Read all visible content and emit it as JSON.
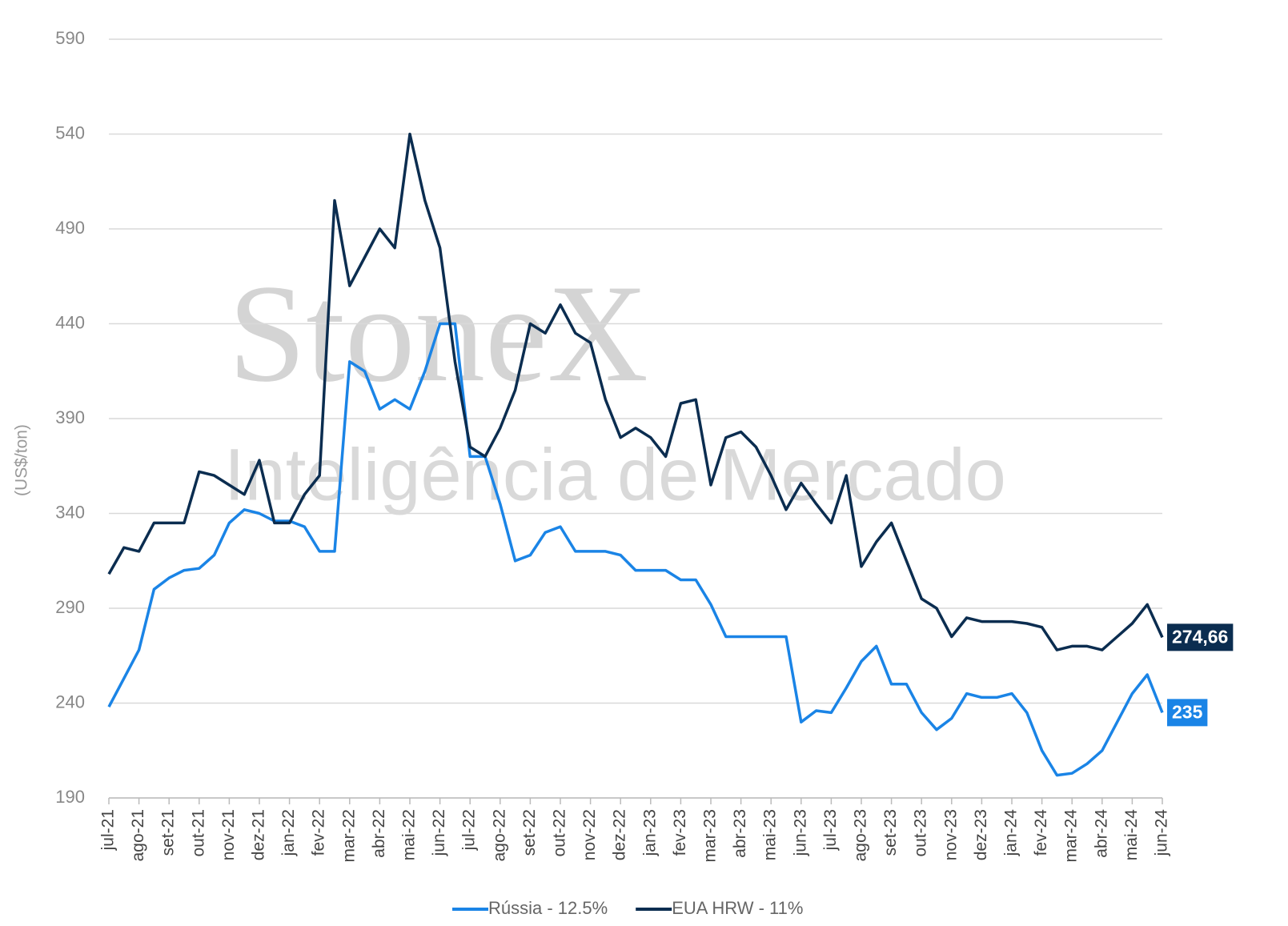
{
  "chart_data": {
    "type": "line",
    "watermark": [
      "StoneX",
      "Inteligência de Mercado"
    ],
    "y_label": "(US$/ton)",
    "categories": [
      "jul-21",
      null,
      "ago-21",
      null,
      "set-21",
      null,
      "out-21",
      null,
      "nov-21",
      null,
      "dez-21",
      null,
      "jan-22",
      null,
      "fev-22",
      null,
      "mar-22",
      null,
      "abr-22",
      null,
      "mai-22",
      null,
      "jun-22",
      null,
      "jul-22",
      null,
      "ago-22",
      null,
      "set-22",
      null,
      "out-22",
      null,
      "nov-22",
      null,
      "dez-22",
      null,
      "jan-23",
      null,
      "fev-23",
      null,
      "mar-23",
      null,
      "abr-23",
      null,
      "mai-23",
      null,
      "jun-23",
      null,
      "jul-23",
      null,
      "ago-23",
      null,
      "set-23",
      null,
      "out-23",
      null,
      "nov-23",
      null,
      "dez-23",
      null,
      "jan-24",
      null,
      "fev-24",
      null,
      "mar-24",
      null,
      "abr-24",
      null,
      "mai-24",
      null,
      "jun-24"
    ],
    "series": [
      {
        "name": "Rússia - 12.5%",
        "color": "#1a84e6",
        "values": [
          238,
          253,
          268,
          300,
          306,
          310,
          311,
          318,
          335,
          342,
          340,
          336,
          336,
          333,
          320,
          320,
          420,
          415,
          395,
          400,
          395,
          415,
          440,
          440,
          370,
          370,
          345,
          315,
          318,
          330,
          333,
          320,
          320,
          320,
          318,
          310,
          310,
          310,
          305,
          305,
          292,
          275,
          275,
          275,
          275,
          275,
          230,
          236,
          235,
          248,
          262,
          270,
          250,
          250,
          235,
          226,
          232,
          245,
          243,
          243,
          245,
          235,
          215,
          202,
          203,
          208,
          215,
          230,
          245,
          255,
          235
        ]
      },
      {
        "name": "EUA HRW - 11%",
        "color": "#0b2d50",
        "values": [
          308,
          322,
          320,
          335,
          335,
          335,
          362,
          360,
          355,
          350,
          368,
          335,
          335,
          350,
          360,
          505,
          460,
          475,
          490,
          480,
          540,
          505,
          480,
          420,
          375,
          370,
          385,
          405,
          440,
          435,
          450,
          435,
          430,
          400,
          380,
          385,
          380,
          370,
          398,
          400,
          355,
          380,
          383,
          375,
          360,
          342,
          356,
          345,
          335,
          360,
          312,
          325,
          335,
          315,
          295,
          290,
          275,
          285,
          283,
          283,
          283,
          282,
          280,
          268,
          270,
          270,
          268,
          275,
          282,
          292,
          274.66
        ],
        "value_labels": [
          null,
          null,
          null,
          null,
          null,
          null,
          null,
          null,
          null,
          null,
          null,
          null,
          null,
          null,
          null,
          null,
          null,
          null,
          null,
          null,
          null,
          null,
          null,
          null,
          null,
          null,
          null,
          null,
          null,
          null,
          null,
          null,
          null,
          null,
          null,
          null,
          null,
          null,
          null,
          null,
          null,
          null,
          null,
          null,
          null,
          null,
          null,
          null,
          null,
          null,
          null,
          null,
          null,
          null,
          null,
          null,
          null,
          null,
          null,
          null,
          null,
          null,
          null,
          null,
          null,
          null,
          null,
          null,
          null,
          null,
          "274,66"
        ]
      }
    ],
    "ylim": [
      190,
      590
    ],
    "yticks": [
      190,
      240,
      290,
      340,
      390,
      440,
      490,
      540,
      590
    ],
    "grid": true,
    "legend": "bottom"
  }
}
